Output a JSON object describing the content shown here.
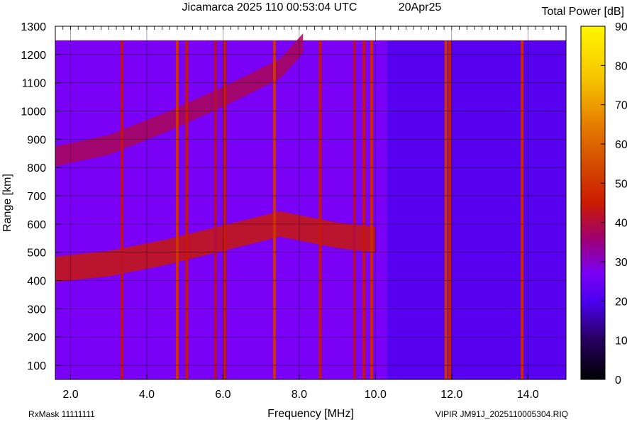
{
  "header": {
    "title": "Jicamarca 2025 110 00:53:04 UTC",
    "date": "20Apr25",
    "colorbar_title": "Total Power [dB]"
  },
  "footer": {
    "rx_mask": "RxMask 11111111",
    "file": "VIPIR  JM91J_2025110005304.RIQ"
  },
  "chart_data": {
    "type": "heatmap",
    "xlabel": "Frequency [MHz]",
    "ylabel": "Range [km]",
    "xlim": [
      1.6,
      15.0
    ],
    "ylim": [
      50,
      1300
    ],
    "data_range_km": [
      50,
      1250
    ],
    "x_ticks": [
      2.0,
      4.0,
      6.0,
      8.0,
      10.0,
      12.0,
      14.0
    ],
    "x_tick_labels": [
      "2.0",
      "4.0",
      "6.0",
      "8.0",
      "10.0",
      "12.0",
      "14.0"
    ],
    "y_ticks": [
      100,
      200,
      300,
      400,
      500,
      600,
      700,
      800,
      900,
      1000,
      1100,
      1200,
      1300
    ],
    "y_tick_labels": [
      "100",
      "200",
      "300",
      "400",
      "500",
      "600",
      "700",
      "800",
      "900",
      "1000",
      "1100",
      "1200",
      "1300"
    ],
    "grid": true,
    "colorbar": {
      "label": "Total Power [dB]",
      "min": 0,
      "max": 90,
      "ticks": [
        0,
        10,
        20,
        30,
        40,
        50,
        60,
        70,
        80,
        90
      ],
      "tick_labels": [
        "0",
        "10",
        "20",
        "30",
        "40",
        "50",
        "60",
        "70",
        "80",
        "90"
      ]
    },
    "background_power_db": 27,
    "high_freq_background_power_db": 22,
    "echo_traces": [
      {
        "name": "first-hop",
        "power_db": 44,
        "points": [
          [
            1.6,
            440
          ],
          [
            3.0,
            460
          ],
          [
            4.5,
            500
          ],
          [
            6.0,
            550
          ],
          [
            7.5,
            600
          ],
          [
            9.0,
            560
          ],
          [
            10.0,
            545
          ]
        ],
        "thickness_km": 90
      },
      {
        "name": "second-hop",
        "power_db": 38,
        "points": [
          [
            1.6,
            840
          ],
          [
            3.0,
            880
          ],
          [
            4.5,
            960
          ],
          [
            6.0,
            1050
          ],
          [
            7.5,
            1150
          ],
          [
            8.1,
            1240
          ]
        ],
        "thickness_km": 70
      }
    ],
    "interference_lines_mhz": [
      {
        "freq": 3.35,
        "power_db": 42
      },
      {
        "freq": 4.8,
        "power_db": 50
      },
      {
        "freq": 5.05,
        "power_db": 44
      },
      {
        "freq": 5.8,
        "power_db": 40
      },
      {
        "freq": 6.05,
        "power_db": 44
      },
      {
        "freq": 7.35,
        "power_db": 50
      },
      {
        "freq": 8.55,
        "power_db": 44
      },
      {
        "freq": 9.45,
        "power_db": 40
      },
      {
        "freq": 9.7,
        "power_db": 44
      },
      {
        "freq": 9.9,
        "power_db": 48
      },
      {
        "freq": 11.85,
        "power_db": 50
      },
      {
        "freq": 11.95,
        "power_db": 46
      },
      {
        "freq": 13.85,
        "power_db": 48
      }
    ]
  }
}
